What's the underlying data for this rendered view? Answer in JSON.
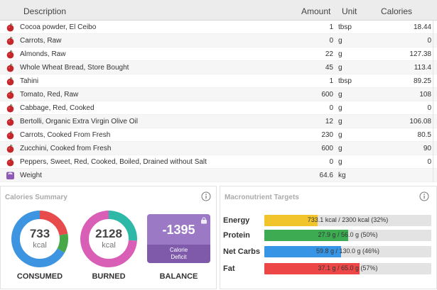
{
  "table": {
    "headers": {
      "description": "Description",
      "amount": "Amount",
      "unit": "Unit",
      "calories": "Calories"
    },
    "rows": [
      {
        "icon": "apple-icon",
        "description": "Cocoa powder, El Ceibo",
        "amount": "1",
        "unit": "tbsp",
        "calories": "18.44"
      },
      {
        "icon": "apple-icon",
        "description": "Carrots, Raw",
        "amount": "0",
        "unit": "g",
        "calories": "0"
      },
      {
        "icon": "apple-icon",
        "description": "Almonds, Raw",
        "amount": "22",
        "unit": "g",
        "calories": "127.38"
      },
      {
        "icon": "apple-icon",
        "description": "Whole Wheat Bread, Store Bought",
        "amount": "45",
        "unit": "g",
        "calories": "113.4"
      },
      {
        "icon": "apple-icon",
        "description": "Tahini",
        "amount": "1",
        "unit": "tbsp",
        "calories": "89.25"
      },
      {
        "icon": "apple-icon",
        "description": "Tomato, Red, Raw",
        "amount": "600",
        "unit": "g",
        "calories": "108"
      },
      {
        "icon": "apple-icon",
        "description": "Cabbage, Red, Cooked",
        "amount": "0",
        "unit": "g",
        "calories": "0"
      },
      {
        "icon": "apple-icon",
        "description": "Bertolli, Organic Extra Virgin Olive Oil",
        "amount": "12",
        "unit": "g",
        "calories": "106.08"
      },
      {
        "icon": "apple-icon",
        "description": "Carrots, Cooked From Fresh",
        "amount": "230",
        "unit": "g",
        "calories": "80.5"
      },
      {
        "icon": "apple-icon",
        "description": "Zucchini, Cooked from Fresh",
        "amount": "600",
        "unit": "g",
        "calories": "90"
      },
      {
        "icon": "apple-icon",
        "description": "Peppers, Sweet, Red, Cooked, Boiled, Drained without Salt",
        "amount": "0",
        "unit": "g",
        "calories": "0"
      },
      {
        "icon": "scale-icon",
        "description": "Weight",
        "amount": "64.6",
        "unit": "kg",
        "calories": ""
      }
    ]
  },
  "calories_summary": {
    "title": "Calories Summary",
    "consumed": {
      "value": "733",
      "unit": "kcal",
      "label": "CONSUMED",
      "segments": [
        {
          "color": "#e84b4b",
          "fraction": 0.22
        },
        {
          "color": "#46a847",
          "fraction": 0.11
        },
        {
          "color": "#3d94e0",
          "fraction": 0.67
        }
      ]
    },
    "burned": {
      "value": "2128",
      "unit": "kcal",
      "label": "BURNED",
      "segments": [
        {
          "color": "#2eb8a8",
          "fraction": 0.26
        },
        {
          "color": "#d85fb5",
          "fraction": 0.74
        }
      ]
    },
    "balance": {
      "value": "-1395",
      "sub_line1": "Calorie",
      "sub_line2": "Deficit",
      "label": "BALANCE"
    }
  },
  "macronutrients": {
    "title": "Macronutrient Targets",
    "items": [
      {
        "name": "Energy",
        "text": "733.1 kcal / 2300 kcal (32%)",
        "fraction": 0.32,
        "color": "#f2c42b"
      },
      {
        "name": "Protein",
        "text": "27.9 g / 56.0 g (50%)",
        "fraction": 0.5,
        "color": "#3cab52"
      },
      {
        "name": "Net Carbs",
        "text": "59.8 g / 130.0 g (46%)",
        "fraction": 0.46,
        "color": "#3795e6"
      },
      {
        "name": "Fat",
        "text": "37.1 g / 65.0 g (57%)",
        "fraction": 0.57,
        "color": "#ec4646"
      }
    ]
  },
  "colors": {
    "balance_top": "#9b79c4",
    "balance_bottom": "#7f5aab",
    "header_bg": "#ececec"
  }
}
